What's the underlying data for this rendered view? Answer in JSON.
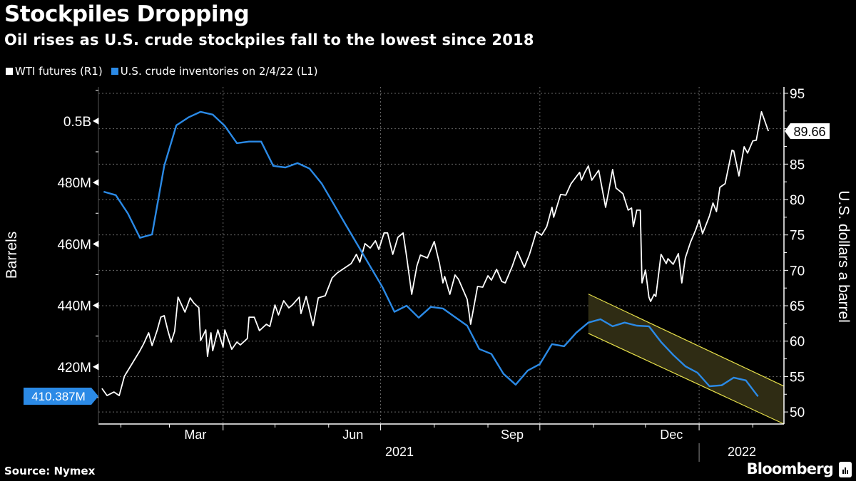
{
  "header": {
    "title": "Stockpiles Dropping",
    "subtitle": "Oil rises as U.S. crude stockpiles fall to the lowest since 2018"
  },
  "footer": {
    "source": "Source: Nymex",
    "brand": "Bloomberg"
  },
  "chart_data": {
    "type": "line",
    "title": "Stockpiles Dropping",
    "subtitle": "Oil rises as U.S. crude stockpiles fall to the lowest since 2018",
    "legend_position": "top-left",
    "grid": true,
    "xlim": [
      "2021-01-19",
      "2022-02-19"
    ],
    "x_tick_labels": [
      {
        "label": "Mar",
        "date": "2021-03-16"
      },
      {
        "label": "Jun",
        "date": "2021-06-15"
      },
      {
        "label": "Sep",
        "date": "2021-09-15"
      },
      {
        "label": "Dec",
        "date": "2021-12-16"
      }
    ],
    "year_labels": [
      {
        "label": "2021",
        "date": "2021-07-01"
      },
      {
        "label": "2022",
        "date": "2022-01-25"
      }
    ],
    "y_left": {
      "label": "Barrels",
      "lim": [
        401.4,
        511.1
      ],
      "unit": "millions",
      "ticks": [
        {
          "value": 500,
          "label": "0.5B"
        },
        {
          "value": 480,
          "label": "480M"
        },
        {
          "value": 460,
          "label": "460M"
        },
        {
          "value": 440,
          "label": "440M"
        },
        {
          "value": 420,
          "label": "420M"
        }
      ],
      "last_value_label": "410.387M"
    },
    "y_right": {
      "label": "U.S. dollars a barrel",
      "lim": [
        48.3,
        95.9
      ],
      "ticks": [
        95,
        90,
        85,
        80,
        75,
        70,
        65,
        60,
        55,
        50
      ],
      "tick_labels": [
        "95",
        "",
        "85",
        "80",
        "75",
        "70",
        "65",
        "60",
        "55",
        "50"
      ],
      "last_value_label": "89.66"
    },
    "series": [
      {
        "name": "WTI futures (R1)",
        "axis": "right",
        "color": "#ffffff",
        "points": [
          [
            "2021-01-21",
            53.32
          ],
          [
            "2021-01-24",
            52.32
          ],
          [
            "2021-01-28",
            52.82
          ],
          [
            "2021-01-31",
            52.32
          ],
          [
            "2021-02-03",
            55.04
          ],
          [
            "2021-02-08",
            57.05
          ],
          [
            "2021-02-12",
            58.66
          ],
          [
            "2021-02-14",
            59.57
          ],
          [
            "2021-02-17",
            61.18
          ],
          [
            "2021-02-19",
            59.37
          ],
          [
            "2021-02-22",
            61.58
          ],
          [
            "2021-02-24",
            63.39
          ],
          [
            "2021-02-26",
            63.6
          ],
          [
            "2021-02-28",
            61.58
          ],
          [
            "2021-03-02",
            59.87
          ],
          [
            "2021-03-04",
            61.38
          ],
          [
            "2021-03-06",
            66.21
          ],
          [
            "2021-03-10",
            64.1
          ],
          [
            "2021-03-13",
            66.11
          ],
          [
            "2021-03-15",
            65.41
          ],
          [
            "2021-03-18",
            64.7
          ],
          [
            "2021-03-19",
            60.07
          ],
          [
            "2021-03-22",
            61.58
          ],
          [
            "2021-03-23",
            57.85
          ],
          [
            "2021-03-25",
            61.18
          ],
          [
            "2021-03-26",
            58.66
          ],
          [
            "2021-03-29",
            61.58
          ],
          [
            "2021-04-01",
            59.16
          ],
          [
            "2021-04-02",
            61.58
          ],
          [
            "2021-04-06",
            58.86
          ],
          [
            "2021-04-09",
            59.87
          ],
          [
            "2021-04-11",
            59.47
          ],
          [
            "2021-04-15",
            60.37
          ],
          [
            "2021-04-16",
            63.39
          ],
          [
            "2021-04-19",
            63.39
          ],
          [
            "2021-04-22",
            61.48
          ],
          [
            "2021-04-26",
            62.39
          ],
          [
            "2021-04-28",
            62.08
          ],
          [
            "2021-05-01",
            65.11
          ],
          [
            "2021-05-03",
            63.7
          ],
          [
            "2021-05-06",
            65.71
          ],
          [
            "2021-05-09",
            64.7
          ],
          [
            "2021-05-11",
            65.11
          ],
          [
            "2021-05-15",
            66.21
          ],
          [
            "2021-05-16",
            63.9
          ],
          [
            "2021-05-19",
            66.31
          ],
          [
            "2021-05-23",
            62.19
          ],
          [
            "2021-05-26",
            66.11
          ],
          [
            "2021-05-30",
            66.41
          ],
          [
            "2021-06-03",
            68.93
          ],
          [
            "2021-06-06",
            69.64
          ],
          [
            "2021-06-09",
            70.14
          ],
          [
            "2021-06-14",
            70.95
          ],
          [
            "2021-06-17",
            72.26
          ],
          [
            "2021-06-19",
            71.15
          ],
          [
            "2021-06-22",
            73.77
          ],
          [
            "2021-06-25",
            73.16
          ],
          [
            "2021-06-28",
            74.17
          ],
          [
            "2021-06-30",
            72.96
          ],
          [
            "2021-07-03",
            75.28
          ],
          [
            "2021-07-05",
            75.28
          ],
          [
            "2021-07-08",
            72.26
          ],
          [
            "2021-07-11",
            74.67
          ],
          [
            "2021-07-14",
            75.28
          ],
          [
            "2021-07-16",
            71.95
          ],
          [
            "2021-07-19",
            66.62
          ],
          [
            "2021-07-22",
            70.64
          ],
          [
            "2021-07-24",
            72.16
          ],
          [
            "2021-07-28",
            71.75
          ],
          [
            "2021-08-01",
            74.07
          ],
          [
            "2021-08-04",
            70.95
          ],
          [
            "2021-08-06",
            68.23
          ],
          [
            "2021-08-07",
            69.13
          ],
          [
            "2021-08-10",
            66.62
          ],
          [
            "2021-08-13",
            69.34
          ],
          [
            "2021-08-15",
            68.73
          ],
          [
            "2021-08-20",
            65.91
          ],
          [
            "2021-08-22",
            62.39
          ],
          [
            "2021-08-26",
            67.72
          ],
          [
            "2021-08-29",
            67.62
          ],
          [
            "2021-09-01",
            69.23
          ],
          [
            "2021-09-03",
            68.63
          ],
          [
            "2021-09-06",
            70.14
          ],
          [
            "2021-09-09",
            68.43
          ],
          [
            "2021-09-11",
            68.23
          ],
          [
            "2021-09-15",
            70.54
          ],
          [
            "2021-09-18",
            72.66
          ],
          [
            "2021-09-22",
            70.44
          ],
          [
            "2021-09-25",
            72.26
          ],
          [
            "2021-09-29",
            75.48
          ],
          [
            "2021-10-02",
            74.97
          ],
          [
            "2021-10-05",
            76.18
          ],
          [
            "2021-10-08",
            78.9
          ],
          [
            "2021-10-09",
            77.49
          ],
          [
            "2021-10-13",
            80.71
          ],
          [
            "2021-10-16",
            80.61
          ],
          [
            "2021-10-19",
            82.23
          ],
          [
            "2021-10-24",
            83.84
          ],
          [
            "2021-10-25",
            82.73
          ],
          [
            "2021-10-27",
            83.84
          ],
          [
            "2021-10-29",
            84.74
          ],
          [
            "2021-10-31",
            82.73
          ],
          [
            "2021-11-04",
            84.14
          ],
          [
            "2021-11-08",
            78.9
          ],
          [
            "2021-11-10",
            81.52
          ],
          [
            "2021-11-12",
            84.24
          ],
          [
            "2021-11-14",
            81.62
          ],
          [
            "2021-11-18",
            80.82
          ],
          [
            "2021-11-21",
            78.5
          ],
          [
            "2021-11-23",
            78.8
          ],
          [
            "2021-11-24",
            76.18
          ],
          [
            "2021-11-26",
            78.5
          ],
          [
            "2021-11-28",
            78.5
          ],
          [
            "2021-11-29",
            68.23
          ],
          [
            "2021-12-01",
            70.04
          ],
          [
            "2021-12-03",
            66.21
          ],
          [
            "2021-12-04",
            65.61
          ],
          [
            "2021-12-06",
            66.62
          ],
          [
            "2021-12-07",
            66.31
          ],
          [
            "2021-12-10",
            72.26
          ],
          [
            "2021-12-13",
            70.95
          ],
          [
            "2021-12-14",
            71.65
          ],
          [
            "2021-12-17",
            70.85
          ],
          [
            "2021-12-20",
            72.36
          ],
          [
            "2021-12-22",
            68.23
          ],
          [
            "2021-12-24",
            71.75
          ],
          [
            "2021-12-27",
            73.97
          ],
          [
            "2021-12-30",
            75.68
          ],
          [
            "2022-01-01",
            77.09
          ],
          [
            "2022-01-03",
            75.18
          ],
          [
            "2022-01-07",
            77.69
          ],
          [
            "2022-01-09",
            79.51
          ],
          [
            "2022-01-11",
            78.3
          ],
          [
            "2022-01-13",
            81.72
          ],
          [
            "2022-01-16",
            82.23
          ],
          [
            "2022-01-20",
            86.96
          ],
          [
            "2022-01-21",
            86.86
          ],
          [
            "2022-01-24",
            83.33
          ],
          [
            "2022-01-27",
            87.46
          ],
          [
            "2022-01-29",
            86.56
          ],
          [
            "2022-02-01",
            88.27
          ],
          [
            "2022-02-03",
            88.37
          ],
          [
            "2022-02-06",
            92.4
          ],
          [
            "2022-02-10",
            89.66
          ]
        ]
      },
      {
        "name": "U.S. crude inventories on 2/4/22 (L1)",
        "axis": "left",
        "color": "#2b8ae6",
        "points": [
          [
            "2021-01-22",
            477.0
          ],
          [
            "2021-01-29",
            475.9
          ],
          [
            "2021-02-05",
            469.9
          ],
          [
            "2021-02-12",
            462.0
          ],
          [
            "2021-02-19",
            463.1
          ],
          [
            "2021-02-26",
            485.4
          ],
          [
            "2021-03-05",
            498.6
          ],
          [
            "2021-03-12",
            501.2
          ],
          [
            "2021-03-19",
            503.0
          ],
          [
            "2021-03-26",
            502.1
          ],
          [
            "2021-04-02",
            498.4
          ],
          [
            "2021-04-09",
            492.8
          ],
          [
            "2021-04-16",
            493.3
          ],
          [
            "2021-04-23",
            493.3
          ],
          [
            "2021-04-30",
            485.4
          ],
          [
            "2021-05-07",
            484.9
          ],
          [
            "2021-05-14",
            486.3
          ],
          [
            "2021-05-21",
            484.5
          ],
          [
            "2021-05-28",
            479.6
          ],
          [
            "2021-06-04",
            472.9
          ],
          [
            "2021-06-11",
            466.1
          ],
          [
            "2021-06-18",
            459.4
          ],
          [
            "2021-06-25",
            452.7
          ],
          [
            "2021-07-02",
            446.0
          ],
          [
            "2021-07-09",
            437.9
          ],
          [
            "2021-07-16",
            439.9
          ],
          [
            "2021-07-23",
            436.0
          ],
          [
            "2021-07-30",
            439.5
          ],
          [
            "2021-08-06",
            439.0
          ],
          [
            "2021-08-13",
            436.2
          ],
          [
            "2021-08-20",
            433.4
          ],
          [
            "2021-08-27",
            425.8
          ],
          [
            "2021-09-03",
            424.2
          ],
          [
            "2021-09-10",
            417.7
          ],
          [
            "2021-09-17",
            414.2
          ],
          [
            "2021-09-24",
            418.8
          ],
          [
            "2021-10-01",
            420.9
          ],
          [
            "2021-10-08",
            427.4
          ],
          [
            "2021-10-15",
            426.7
          ],
          [
            "2021-10-22",
            431.1
          ],
          [
            "2021-10-29",
            434.4
          ],
          [
            "2021-11-05",
            435.5
          ],
          [
            "2021-11-12",
            433.2
          ],
          [
            "2021-11-19",
            434.4
          ],
          [
            "2021-11-26",
            433.4
          ],
          [
            "2021-12-03",
            433.2
          ],
          [
            "2021-12-10",
            428.1
          ],
          [
            "2021-12-17",
            423.9
          ],
          [
            "2021-12-24",
            420.2
          ],
          [
            "2021-12-31",
            418.1
          ],
          [
            "2022-01-07",
            413.7
          ],
          [
            "2022-01-14",
            414.0
          ],
          [
            "2022-01-21",
            416.5
          ],
          [
            "2022-01-28",
            415.6
          ],
          [
            "2022-02-04",
            410.387
          ]
        ]
      }
    ],
    "annotations": [
      {
        "type": "channel",
        "axis": "left",
        "fill": "#2f2c14",
        "stroke": "#e6df4a",
        "start": "2021-10-29",
        "end": "2022-02-19",
        "upper": [
          443.7,
          413.7
        ],
        "lower": [
          430.9,
          401.4
        ]
      }
    ]
  }
}
